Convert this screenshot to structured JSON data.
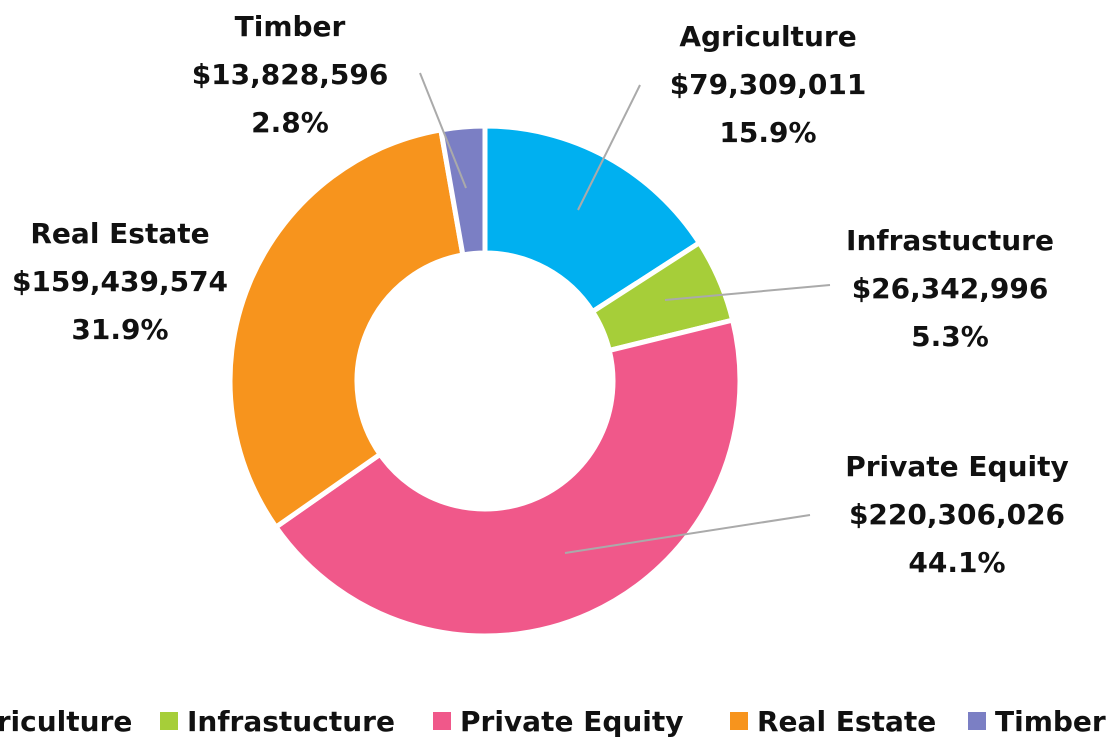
{
  "chart_data": {
    "type": "donut",
    "categories": [
      "Agriculture",
      "Infrastucture",
      "Private Equity",
      "Real Estate",
      "Timber"
    ],
    "values": [
      79309011,
      26342996,
      220306026,
      159439574,
      13828596
    ],
    "value_labels": [
      "$79,309,011",
      "$26,342,996",
      "$220,306,026",
      "$159,439,574",
      "$13,828,596"
    ],
    "shares": [
      15.9,
      5.3,
      44.1,
      31.9,
      2.8
    ],
    "share_labels": [
      "15.9%",
      "5.3%",
      "44.1%",
      "31.9%",
      "2.8%"
    ],
    "colors": [
      "#00b0f0",
      "#a6ce39",
      "#f0588a",
      "#f7941d",
      "#7b7fc4"
    ],
    "legend": "bottom"
  }
}
